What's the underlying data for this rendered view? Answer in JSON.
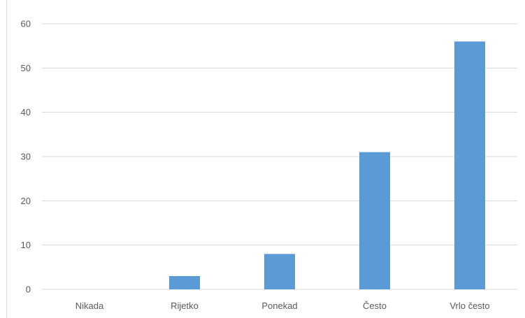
{
  "chart_data": {
    "type": "bar",
    "categories": [
      "Nikada",
      "Rijetko",
      "Ponekad",
      "Često",
      "Vrlo često"
    ],
    "values": [
      0,
      3,
      8,
      31,
      56
    ],
    "yticks": [
      0,
      10,
      20,
      30,
      40,
      50,
      60
    ],
    "ylim": [
      0,
      60
    ],
    "grid": true,
    "legend": "none",
    "bar_color": "#5b9bd5",
    "grid_color": "#d9d9d9",
    "text_color": "#595959"
  }
}
